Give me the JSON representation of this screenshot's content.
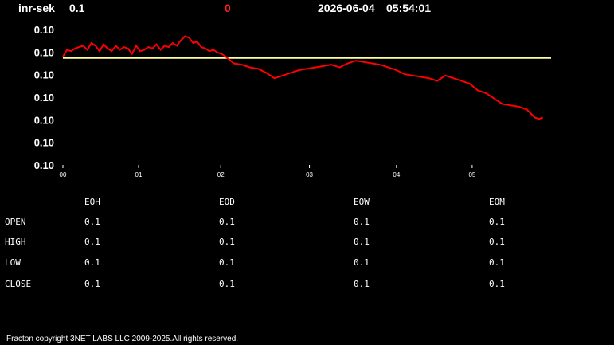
{
  "header": {
    "symbol": "inr-sek",
    "price": "0.1",
    "change": "0",
    "date": "2026-06-04",
    "time": "05:54:01"
  },
  "chart_data": {
    "type": "line",
    "title": "",
    "xlabel": "",
    "ylabel": "",
    "y_tick_labels": [
      "0.10",
      "0.10",
      "0.10",
      "0.10",
      "0.10",
      "0.10",
      "0.10"
    ],
    "x_tick_labels": [
      "00",
      "01",
      "02",
      "03",
      "04",
      "05"
    ],
    "x_range": [
      0,
      6
    ],
    "y_range": [
      0,
      1
    ],
    "reference_line": {
      "value": 0.79,
      "color": "#ffff99"
    },
    "grid": false,
    "series": [
      {
        "color": "#ff0000",
        "x": [
          0.0,
          0.05,
          0.1,
          0.15,
          0.2,
          0.25,
          0.3,
          0.35,
          0.4,
          0.45,
          0.5,
          0.55,
          0.6,
          0.65,
          0.7,
          0.75,
          0.8,
          0.85,
          0.9,
          0.95,
          1.0,
          1.05,
          1.1,
          1.15,
          1.2,
          1.25,
          1.3,
          1.35,
          1.4,
          1.45,
          1.5,
          1.55,
          1.6,
          1.65,
          1.7,
          1.75,
          1.8,
          1.85,
          1.9,
          1.95,
          2.0,
          2.1,
          2.2,
          2.3,
          2.4,
          2.5,
          2.6,
          2.7,
          2.8,
          2.9,
          3.0,
          3.1,
          3.2,
          3.3,
          3.4,
          3.5,
          3.6,
          3.7,
          3.8,
          3.9,
          4.0,
          4.1,
          4.2,
          4.3,
          4.4,
          4.5,
          4.6,
          4.7,
          4.8,
          4.9,
          5.0,
          5.1,
          5.2,
          5.3,
          5.4,
          5.5,
          5.6,
          5.7,
          5.8,
          5.85,
          5.9
        ],
        "y": [
          0.8,
          0.85,
          0.84,
          0.86,
          0.87,
          0.88,
          0.85,
          0.9,
          0.88,
          0.84,
          0.89,
          0.86,
          0.84,
          0.88,
          0.85,
          0.87,
          0.86,
          0.82,
          0.88,
          0.84,
          0.85,
          0.87,
          0.86,
          0.89,
          0.85,
          0.88,
          0.87,
          0.9,
          0.88,
          0.92,
          0.95,
          0.94,
          0.9,
          0.91,
          0.87,
          0.86,
          0.84,
          0.85,
          0.83,
          0.82,
          0.8,
          0.75,
          0.74,
          0.72,
          0.71,
          0.68,
          0.64,
          0.66,
          0.68,
          0.7,
          0.71,
          0.72,
          0.73,
          0.74,
          0.72,
          0.75,
          0.77,
          0.76,
          0.75,
          0.74,
          0.72,
          0.7,
          0.67,
          0.66,
          0.65,
          0.64,
          0.62,
          0.66,
          0.64,
          0.62,
          0.6,
          0.55,
          0.53,
          0.49,
          0.45,
          0.44,
          0.43,
          0.41,
          0.35,
          0.34,
          0.35
        ]
      }
    ]
  },
  "table": {
    "columns": [
      "EOH",
      "EOD",
      "EOW",
      "EOM"
    ],
    "rows": [
      {
        "label": "OPEN",
        "values": [
          "0.1",
          "0.1",
          "0.1",
          "0.1"
        ]
      },
      {
        "label": "HIGH",
        "values": [
          "0.1",
          "0.1",
          "0.1",
          "0.1"
        ]
      },
      {
        "label": "LOW",
        "values": [
          "0.1",
          "0.1",
          "0.1",
          "0.1"
        ]
      },
      {
        "label": "CLOSE",
        "values": [
          "0.1",
          "0.1",
          "0.1",
          "0.1"
        ]
      }
    ]
  },
  "footer": {
    "copyright": "Fracton copyright 3NET LABS LLC 2009-2025.All rights reserved."
  },
  "colors": {
    "background": "#000000",
    "text": "#ffffff",
    "change": "#ff2020",
    "series": "#ff0000",
    "reference": "#ffff99"
  }
}
